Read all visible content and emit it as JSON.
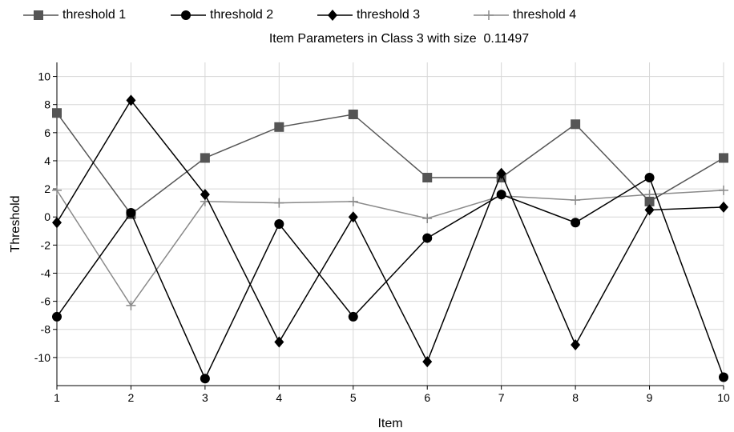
{
  "chart_data": {
    "type": "line",
    "title": "Item Parameters in Class 3 with size  0.11497",
    "xlabel": "Item",
    "ylabel": "Threshold",
    "x": [
      1,
      2,
      3,
      4,
      5,
      6,
      7,
      8,
      9,
      10
    ],
    "xlim": [
      1,
      10
    ],
    "ylim": [
      -12,
      11
    ],
    "yticks": [
      10,
      8,
      6,
      4,
      2,
      0,
      -2,
      -4,
      -6,
      -8,
      -10
    ],
    "grid": true,
    "legend_position": "top",
    "series": [
      {
        "name": "threshold 1",
        "marker": "square",
        "color": "#555555",
        "values": [
          7.4,
          0.2,
          4.2,
          6.4,
          7.3,
          2.8,
          2.8,
          6.6,
          1.1,
          4.2
        ]
      },
      {
        "name": "threshold 2",
        "marker": "circle",
        "color": "#000000",
        "values": [
          -7.1,
          0.3,
          -11.5,
          -0.5,
          -7.1,
          -1.5,
          1.6,
          -0.4,
          2.8,
          -11.4
        ]
      },
      {
        "name": "threshold 3",
        "marker": "diamond",
        "color": "#000000",
        "values": [
          -0.4,
          8.3,
          1.6,
          -8.9,
          0.0,
          -10.3,
          3.1,
          -9.1,
          0.5,
          0.7
        ]
      },
      {
        "name": "threshold 4",
        "marker": "plus",
        "color": "#8a8a8a",
        "values": [
          1.9,
          -6.3,
          1.1,
          1.0,
          1.1,
          -0.1,
          1.5,
          1.2,
          1.6,
          1.9
        ]
      }
    ]
  }
}
